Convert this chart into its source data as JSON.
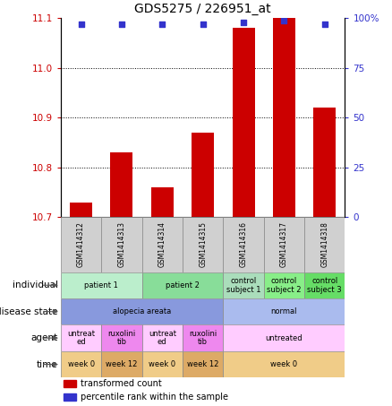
{
  "title": "GDS5275 / 226951_at",
  "samples": [
    "GSM1414312",
    "GSM1414313",
    "GSM1414314",
    "GSM1414315",
    "GSM1414316",
    "GSM1414317",
    "GSM1414318"
  ],
  "bar_values": [
    10.73,
    10.83,
    10.76,
    10.87,
    11.08,
    11.1,
    10.92
  ],
  "dot_values": [
    97,
    97,
    97,
    97,
    98,
    99,
    97
  ],
  "ylim_left": [
    10.7,
    11.1
  ],
  "ylim_right": [
    0,
    100
  ],
  "yticks_left": [
    10.7,
    10.8,
    10.9,
    11.0,
    11.1
  ],
  "yticks_right": [
    0,
    25,
    50,
    75,
    100
  ],
  "ytick_labels_right": [
    "0",
    "25",
    "50",
    "75",
    "100%"
  ],
  "bar_color": "#cc0000",
  "dot_color": "#3333cc",
  "bar_bottom": 10.7,
  "annotation_rows": [
    {
      "label": "individual",
      "cells": [
        {
          "text": "patient 1",
          "span": 2,
          "color": "#bbeecc"
        },
        {
          "text": "patient 2",
          "span": 2,
          "color": "#88dd99"
        },
        {
          "text": "control\nsubject 1",
          "span": 1,
          "color": "#aaddbb"
        },
        {
          "text": "control\nsubject 2",
          "span": 1,
          "color": "#88ee88"
        },
        {
          "text": "control\nsubject 3",
          "span": 1,
          "color": "#66dd66"
        }
      ]
    },
    {
      "label": "disease state",
      "cells": [
        {
          "text": "alopecia areata",
          "span": 4,
          "color": "#8899dd"
        },
        {
          "text": "normal",
          "span": 3,
          "color": "#aabbee"
        }
      ]
    },
    {
      "label": "agent",
      "cells": [
        {
          "text": "untreat\ned",
          "span": 1,
          "color": "#ffccff"
        },
        {
          "text": "ruxolini\ntib",
          "span": 1,
          "color": "#ee88ee"
        },
        {
          "text": "untreat\ned",
          "span": 1,
          "color": "#ffccff"
        },
        {
          "text": "ruxolini\ntib",
          "span": 1,
          "color": "#ee88ee"
        },
        {
          "text": "untreated",
          "span": 3,
          "color": "#ffccff"
        }
      ]
    },
    {
      "label": "time",
      "cells": [
        {
          "text": "week 0",
          "span": 1,
          "color": "#f0cc88"
        },
        {
          "text": "week 12",
          "span": 1,
          "color": "#ddaa66"
        },
        {
          "text": "week 0",
          "span": 1,
          "color": "#f0cc88"
        },
        {
          "text": "week 12",
          "span": 1,
          "color": "#ddaa66"
        },
        {
          "text": "week 0",
          "span": 3,
          "color": "#f0cc88"
        }
      ]
    }
  ],
  "legend_items": [
    {
      "label": "transformed count",
      "color": "#cc0000"
    },
    {
      "label": "percentile rank within the sample",
      "color": "#3333cc"
    }
  ],
  "fig_width": 4.38,
  "fig_height": 4.53,
  "dpi": 100
}
